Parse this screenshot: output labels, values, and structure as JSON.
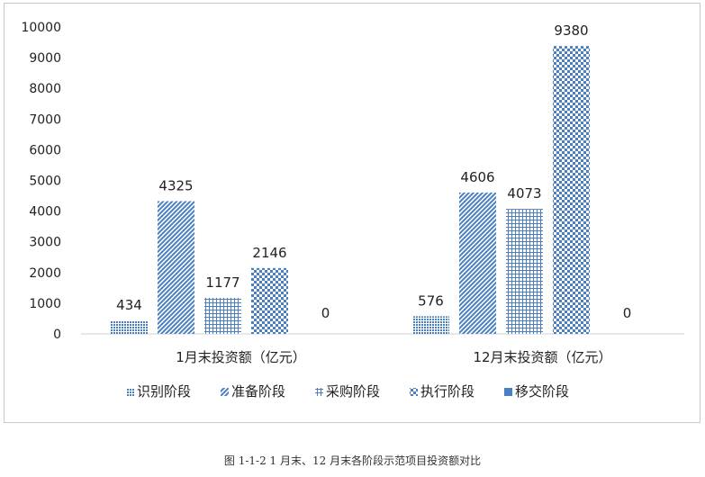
{
  "chart_data": {
    "type": "bar",
    "categories": [
      "1月末投资额（亿元）",
      "12月末投资额（亿元）"
    ],
    "series": [
      {
        "name": "识别阶段",
        "values": [
          434,
          576
        ],
        "pattern": "dots"
      },
      {
        "name": "准备阶段",
        "values": [
          4325,
          4606
        ],
        "pattern": "diagonal"
      },
      {
        "name": "采购阶段",
        "values": [
          1177,
          4073
        ],
        "pattern": "grid"
      },
      {
        "name": "执行阶段",
        "values": [
          2146,
          9380
        ],
        "pattern": "checker"
      },
      {
        "name": "移交阶段",
        "values": [
          0,
          0
        ],
        "pattern": "solid"
      }
    ],
    "y_ticks": [
      0,
      1000,
      2000,
      3000,
      4000,
      5000,
      6000,
      7000,
      8000,
      9000,
      10000
    ],
    "ylim": [
      0,
      10000
    ],
    "grid": false,
    "legend_position": "bottom",
    "colors": {
      "series": "#4a7fc4",
      "axis": "#d0d0d0",
      "text": "#222222"
    }
  },
  "caption": "图 1-1-2  1 月末、12 月末各阶段示范项目投资额对比"
}
